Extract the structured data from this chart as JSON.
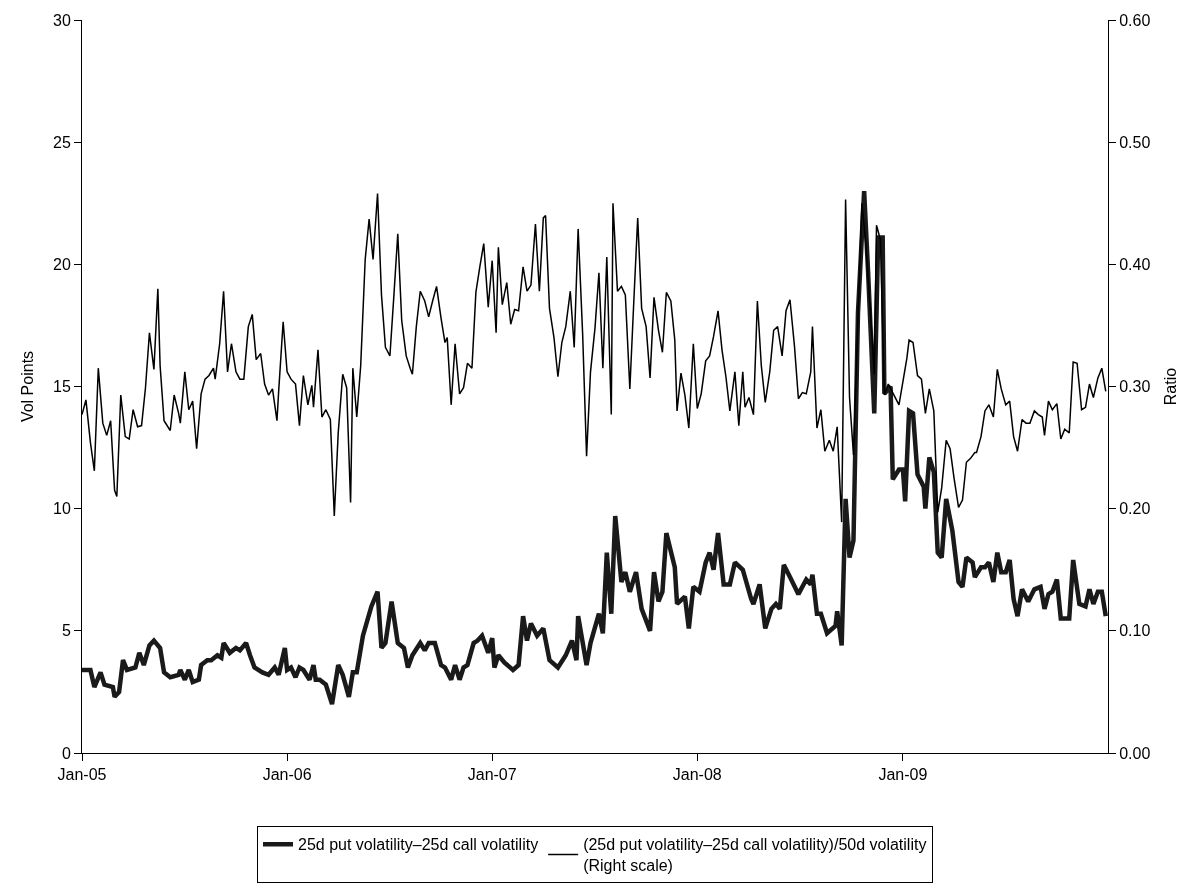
{
  "chart_data": {
    "type": "line",
    "ylabel": "Vol Points",
    "y2label": "Ratio",
    "legend": "bottom",
    "grid": false,
    "marker": "none",
    "line_style": "solid",
    "xlim": [
      "2005-01-01",
      "2010-01-01"
    ],
    "xticks": [
      {
        "value": "2005-01-01",
        "label": "Jan-05"
      },
      {
        "value": "2006-01-01",
        "label": "Jan-06"
      },
      {
        "value": "2007-01-01",
        "label": "Jan-07"
      },
      {
        "value": "2008-01-01",
        "label": "Jan-08"
      },
      {
        "value": "2009-01-01",
        "label": "Jan-09"
      }
    ],
    "ylim": [
      0,
      30
    ],
    "yticks": [
      0,
      5,
      10,
      15,
      20,
      25,
      30
    ],
    "y2lim": [
      0,
      0.6
    ],
    "y2ticks": [
      {
        "value": 0,
        "label": "0.00"
      },
      {
        "value": 0.1,
        "label": "0.10"
      },
      {
        "value": 0.2,
        "label": "0.20"
      },
      {
        "value": 0.3,
        "label": "0.30"
      },
      {
        "value": 0.4,
        "label": "0.40"
      },
      {
        "value": 0.5,
        "label": "0.50"
      },
      {
        "value": 0.6,
        "label": "0.60"
      }
    ],
    "series": [
      {
        "name": "25d put volatility–25d call volatility",
        "color": "#1a1a1a",
        "x": [
          "2005-01-01",
          "2005-01-16",
          "2005-01-23",
          "2005-02-03",
          "2005-02-10",
          "2005-02-25",
          "2005-02-28",
          "2005-03-08",
          "2005-03-15",
          "2005-03-22",
          "2005-04-06",
          "2005-04-13",
          "2005-04-21",
          "2005-05-01",
          "2005-05-09",
          "2005-05-20",
          "2005-05-27",
          "2005-06-07",
          "2005-06-22",
          "2005-06-25",
          "2005-07-03",
          "2005-07-10",
          "2005-07-17",
          "2005-07-28",
          "2005-08-01",
          "2005-08-12",
          "2005-08-19",
          "2005-08-30",
          "2005-09-06",
          "2005-09-10",
          "2005-09-21",
          "2005-10-02",
          "2005-10-09",
          "2005-10-20",
          "2005-10-27",
          "2005-11-04",
          "2005-11-18",
          "2005-11-29",
          "2005-12-10",
          "2005-12-17",
          "2005-12-28",
          "2006-01-01",
          "2006-01-08",
          "2006-01-16",
          "2006-01-23",
          "2006-01-30",
          "2006-02-10",
          "2006-02-17",
          "2006-02-21",
          "2006-02-28",
          "2006-03-11",
          "2006-03-22",
          "2006-04-02",
          "2006-04-10",
          "2006-04-21",
          "2006-04-28",
          "2006-05-05",
          "2006-05-16",
          "2006-05-31",
          "2006-06-11",
          "2006-06-18",
          "2006-06-25",
          "2006-07-06",
          "2006-07-17",
          "2006-07-28",
          "2006-08-04",
          "2006-08-12",
          "2006-08-26",
          "2006-09-03",
          "2006-09-10",
          "2006-09-21",
          "2006-10-02",
          "2006-10-09",
          "2006-10-20",
          "2006-10-27",
          "2006-11-04",
          "2006-11-11",
          "2006-11-18",
          "2006-11-29",
          "2006-12-06",
          "2006-12-14",
          "2006-12-25",
          "2007-01-01",
          "2007-01-05",
          "2007-01-12",
          "2007-01-23",
          "2007-02-07",
          "2007-02-17",
          "2007-02-25",
          "2007-03-04",
          "2007-03-11",
          "2007-03-22",
          "2007-04-02",
          "2007-04-13",
          "2007-04-28",
          "2007-05-12",
          "2007-05-23",
          "2007-05-31",
          "2007-06-03",
          "2007-06-18",
          "2007-06-25",
          "2007-07-10",
          "2007-07-17",
          "2007-07-24",
          "2007-08-01",
          "2007-08-08",
          "2007-08-19",
          "2007-08-26",
          "2007-09-03",
          "2007-09-14",
          "2007-09-24",
          "2007-10-09",
          "2007-10-16",
          "2007-10-24",
          "2007-10-31",
          "2007-11-07",
          "2007-11-22",
          "2007-11-26",
          "2007-12-10",
          "2007-12-17",
          "2007-12-25",
          "2008-01-05",
          "2008-01-16",
          "2008-01-23",
          "2008-01-30",
          "2008-02-07",
          "2008-02-17",
          "2008-02-28",
          "2008-03-08",
          "2008-03-22",
          "2008-04-06",
          "2008-04-10",
          "2008-04-21",
          "2008-05-01",
          "2008-05-12",
          "2008-05-20",
          "2008-05-27",
          "2008-06-03",
          "2008-06-14",
          "2008-06-29",
          "2008-07-13",
          "2008-07-21",
          "2008-07-24",
          "2008-08-01",
          "2008-08-08",
          "2008-08-19",
          "2008-09-03",
          "2008-09-06",
          "2008-09-14",
          "2008-09-21",
          "2008-09-28",
          "2008-10-05",
          "2008-10-13",
          "2008-10-24",
          "2008-10-31",
          "2008-11-11",
          "2008-11-18",
          "2008-11-26",
          "2008-11-29",
          "2008-12-10",
          "2008-12-14",
          "2008-12-25",
          "2009-01-01",
          "2009-01-05",
          "2009-01-12",
          "2009-01-19",
          "2009-01-27",
          "2009-02-07",
          "2009-02-10",
          "2009-02-17",
          "2009-02-25",
          "2009-03-04",
          "2009-03-11",
          "2009-03-19",
          "2009-03-30",
          "2009-04-10",
          "2009-04-17",
          "2009-04-24",
          "2009-05-05",
          "2009-05-09",
          "2009-05-20",
          "2009-05-27",
          "2009-06-03",
          "2009-06-11",
          "2009-06-18",
          "2009-06-25",
          "2009-07-03",
          "2009-07-10",
          "2009-07-17",
          "2009-07-24",
          "2009-08-01",
          "2009-08-12",
          "2009-08-23",
          "2009-09-03",
          "2009-09-10",
          "2009-09-17",
          "2009-09-24",
          "2009-10-02",
          "2009-10-09",
          "2009-10-24",
          "2009-10-31",
          "2009-11-11",
          "2009-11-22",
          "2009-11-29",
          "2009-12-06",
          "2009-12-14",
          "2009-12-21",
          "2009-12-28"
        ],
        "values": [
          3.4,
          3.4,
          2.7,
          3.3,
          2.8,
          2.7,
          2.3,
          2.5,
          3.8,
          3.4,
          3.5,
          4.1,
          3.6,
          4.4,
          4.6,
          4.3,
          3.3,
          3.1,
          3.2,
          3.4,
          3.0,
          3.4,
          2.9,
          3.0,
          3.6,
          3.8,
          3.8,
          4.0,
          3.9,
          4.5,
          4.1,
          4.3,
          4.2,
          4.5,
          4.0,
          3.5,
          3.3,
          3.2,
          3.5,
          3.2,
          4.3,
          3.4,
          3.5,
          3.1,
          3.5,
          3.4,
          3.0,
          3.6,
          3.0,
          3.0,
          2.8,
          2.0,
          3.6,
          3.2,
          2.3,
          3.3,
          3.3,
          4.8,
          6.0,
          6.6,
          4.3,
          4.5,
          6.2,
          4.5,
          4.3,
          3.5,
          4.0,
          4.5,
          4.2,
          4.5,
          4.5,
          3.6,
          3.5,
          3.0,
          3.6,
          3.0,
          3.5,
          3.6,
          4.5,
          4.6,
          4.8,
          4.1,
          4.7,
          3.5,
          4.0,
          3.7,
          3.4,
          3.6,
          5.6,
          4.6,
          5.3,
          4.8,
          5.1,
          3.8,
          3.5,
          4.0,
          4.6,
          3.8,
          5.6,
          3.6,
          4.5,
          5.7,
          4.9,
          8.2,
          5.7,
          9.7,
          7.0,
          7.4,
          6.6,
          7.4,
          5.9,
          5.0,
          7.4,
          6.2,
          6.6,
          9.0,
          7.6,
          6.1,
          6.4,
          5.1,
          6.8,
          6.6,
          7.8,
          8.2,
          7.5,
          9.0,
          6.9,
          6.9,
          7.8,
          7.5,
          6.3,
          6.1,
          6.9,
          5.1,
          5.9,
          6.1,
          5.9,
          7.7,
          7.2,
          6.5,
          7.1,
          6.9,
          7.3,
          5.7,
          5.7,
          4.9,
          5.2,
          5.8,
          4.4,
          10.4,
          8.0,
          8.7,
          18.0,
          23.0,
          19.7,
          13.9,
          21.1,
          21.1,
          14.7,
          15.0,
          11.2,
          11.6,
          11.6,
          10.3,
          14.0,
          13.9,
          11.4,
          10.9,
          10.0,
          12.1,
          11.5,
          8.2,
          8.0,
          10.4,
          9.1,
          7.0,
          6.8,
          8.0,
          7.8,
          7.2,
          7.6,
          7.6,
          7.8,
          7.0,
          8.2,
          7.4,
          7.4,
          7.9,
          6.3,
          5.6,
          6.7,
          6.2,
          6.7,
          6.8,
          5.9,
          6.5,
          6.6,
          7.1,
          5.5,
          5.5,
          7.9,
          6.1,
          6.0,
          6.7,
          6.1,
          6.6,
          6.6,
          5.6
        ]
      },
      {
        "name": "(25d put volatility–25d call volatility)/50d volatility\n(Right scale)",
        "color": "#000000",
        "axis": "y2",
        "x": [
          "2005-01-01",
          "2005-01-08",
          "2005-01-16",
          "2005-01-23",
          "2005-01-30",
          "2005-02-07",
          "2005-02-14",
          "2005-02-21",
          "2005-02-28",
          "2005-03-04",
          "2005-03-11",
          "2005-03-19",
          "2005-03-26",
          "2005-04-02",
          "2005-04-10",
          "2005-04-17",
          "2005-04-24",
          "2005-05-01",
          "2005-05-09",
          "2005-05-16",
          "2005-05-20",
          "2005-05-27",
          "2005-06-07",
          "2005-06-14",
          "2005-06-22",
          "2005-06-25",
          "2005-07-03",
          "2005-07-10",
          "2005-07-17",
          "2005-07-24",
          "2005-08-01",
          "2005-08-08",
          "2005-08-15",
          "2005-08-23",
          "2005-08-26",
          "2005-09-03",
          "2005-09-10",
          "2005-09-17",
          "2005-09-24",
          "2005-10-02",
          "2005-10-09",
          "2005-10-16",
          "2005-10-24",
          "2005-10-31",
          "2005-11-07",
          "2005-11-15",
          "2005-11-22",
          "2005-11-29",
          "2005-12-06",
          "2005-12-14",
          "2005-12-17",
          "2005-12-25",
          "2006-01-01",
          "2006-01-08",
          "2006-01-16",
          "2006-01-23",
          "2006-01-30",
          "2006-02-07",
          "2006-02-14",
          "2006-02-17",
          "2006-02-25",
          "2006-03-04",
          "2006-03-11",
          "2006-03-19",
          "2006-03-26",
          "2006-04-02",
          "2006-04-10",
          "2006-04-17",
          "2006-04-24",
          "2006-04-28",
          "2006-05-05",
          "2006-05-12",
          "2006-05-20",
          "2006-05-27",
          "2006-06-03",
          "2006-06-11",
          "2006-06-18",
          "2006-06-25",
          "2006-07-03",
          "2006-07-10",
          "2006-07-17",
          "2006-07-24",
          "2006-08-01",
          "2006-08-08",
          "2006-08-12",
          "2006-08-19",
          "2006-08-26",
          "2006-09-03",
          "2006-09-10",
          "2006-09-17",
          "2006-09-24",
          "2006-10-02",
          "2006-10-09",
          "2006-10-13",
          "2006-10-20",
          "2006-10-27",
          "2006-11-04",
          "2006-11-11",
          "2006-11-18",
          "2006-11-26",
          "2006-12-03",
          "2006-12-10",
          "2006-12-17",
          "2006-12-25",
          "2007-01-01",
          "2007-01-08",
          "2007-01-12",
          "2007-01-19",
          "2007-01-27",
          "2007-02-03",
          "2007-02-10",
          "2007-02-17",
          "2007-02-25",
          "2007-03-04",
          "2007-03-11",
          "2007-03-19",
          "2007-03-26",
          "2007-04-02",
          "2007-04-06",
          "2007-04-13",
          "2007-04-21",
          "2007-04-28",
          "2007-05-05",
          "2007-05-12",
          "2007-05-20",
          "2007-05-27",
          "2007-06-03",
          "2007-06-11",
          "2007-06-18",
          "2007-06-25",
          "2007-07-03",
          "2007-07-10",
          "2007-07-17",
          "2007-07-24",
          "2007-08-01",
          "2007-08-04",
          "2007-08-12",
          "2007-08-19",
          "2007-08-26",
          "2007-09-03",
          "2007-09-10",
          "2007-09-17",
          "2007-09-24",
          "2007-10-02",
          "2007-10-09",
          "2007-10-16",
          "2007-10-24",
          "2007-10-31",
          "2007-11-07",
          "2007-11-15",
          "2007-11-22",
          "2007-11-26",
          "2007-12-03",
          "2007-12-10",
          "2007-12-17",
          "2007-12-25",
          "2008-01-01",
          "2008-01-08",
          "2008-01-16",
          "2008-01-23",
          "2008-01-30",
          "2008-02-07",
          "2008-02-14",
          "2008-02-21",
          "2008-02-28",
          "2008-03-08",
          "2008-03-15",
          "2008-03-22",
          "2008-03-26",
          "2008-04-02",
          "2008-04-10",
          "2008-04-17",
          "2008-04-24",
          "2008-05-01",
          "2008-05-09",
          "2008-05-16",
          "2008-05-23",
          "2008-05-31",
          "2008-06-07",
          "2008-06-14",
          "2008-06-22",
          "2008-06-29",
          "2008-07-06",
          "2008-07-13",
          "2008-07-21",
          "2008-07-24",
          "2008-08-01",
          "2008-08-08",
          "2008-08-15",
          "2008-08-23",
          "2008-08-30",
          "2008-09-06",
          "2008-09-14",
          "2008-09-21",
          "2008-09-28",
          "2008-10-05",
          "2008-10-13",
          "2008-10-20",
          "2008-10-27",
          "2008-11-04",
          "2008-11-11",
          "2008-11-15",
          "2008-11-22",
          "2008-11-29",
          "2008-12-06",
          "2008-12-25",
          "2009-01-08",
          "2009-01-12",
          "2009-01-19",
          "2009-01-27",
          "2009-02-03",
          "2009-02-10",
          "2009-02-17",
          "2009-02-25",
          "2009-03-04",
          "2009-03-11",
          "2009-03-19",
          "2009-03-26",
          "2009-04-02",
          "2009-04-10",
          "2009-04-17",
          "2009-04-24",
          "2009-05-01",
          "2009-05-09",
          "2009-05-12",
          "2009-05-20",
          "2009-05-27",
          "2009-06-03",
          "2009-06-11",
          "2009-06-18",
          "2009-06-25",
          "2009-07-03",
          "2009-07-10",
          "2009-07-17",
          "2009-07-24",
          "2009-08-01",
          "2009-08-08",
          "2009-08-15",
          "2009-08-23",
          "2009-08-30",
          "2009-09-06",
          "2009-09-10",
          "2009-09-17",
          "2009-09-24",
          "2009-10-02",
          "2009-10-09",
          "2009-10-16",
          "2009-10-24",
          "2009-10-31",
          "2009-11-07",
          "2009-11-15",
          "2009-11-22",
          "2009-11-29",
          "2009-12-06",
          "2009-12-14",
          "2009-12-21",
          "2009-12-28"
        ],
        "values": [
          0.277,
          0.289,
          0.254,
          0.231,
          0.315,
          0.27,
          0.26,
          0.272,
          0.215,
          0.21,
          0.293,
          0.259,
          0.257,
          0.281,
          0.267,
          0.268,
          0.299,
          0.344,
          0.314,
          0.38,
          0.317,
          0.272,
          0.264,
          0.293,
          0.278,
          0.27,
          0.312,
          0.281,
          0.288,
          0.249,
          0.294,
          0.306,
          0.309,
          0.315,
          0.306,
          0.335,
          0.378,
          0.312,
          0.335,
          0.312,
          0.306,
          0.306,
          0.349,
          0.359,
          0.322,
          0.327,
          0.302,
          0.293,
          0.298,
          0.272,
          0.296,
          0.353,
          0.312,
          0.306,
          0.302,
          0.268,
          0.309,
          0.285,
          0.301,
          0.283,
          0.33,
          0.275,
          0.281,
          0.273,
          0.194,
          0.262,
          0.31,
          0.299,
          0.205,
          0.315,
          0.275,
          0.317,
          0.404,
          0.437,
          0.404,
          0.458,
          0.375,
          0.332,
          0.325,
          0.374,
          0.425,
          0.354,
          0.325,
          0.315,
          0.31,
          0.349,
          0.378,
          0.37,
          0.357,
          0.37,
          0.382,
          0.356,
          0.336,
          0.34,
          0.285,
          0.335,
          0.294,
          0.299,
          0.319,
          0.315,
          0.377,
          0.398,
          0.417,
          0.365,
          0.403,
          0.344,
          0.414,
          0.367,
          0.385,
          0.351,
          0.363,
          0.362,
          0.398,
          0.378,
          0.383,
          0.433,
          0.378,
          0.438,
          0.44,
          0.364,
          0.34,
          0.308,
          0.336,
          0.349,
          0.378,
          0.332,
          0.429,
          0.343,
          0.243,
          0.312,
          0.348,
          0.393,
          0.315,
          0.406,
          0.277,
          0.45,
          0.378,
          0.382,
          0.375,
          0.298,
          0.369,
          0.438,
          0.364,
          0.349,
          0.307,
          0.373,
          0.346,
          0.328,
          0.377,
          0.37,
          0.338,
          0.28,
          0.311,
          0.293,
          0.266,
          0.335,
          0.282,
          0.294,
          0.321,
          0.325,
          0.341,
          0.362,
          0.33,
          0.308,
          0.28,
          0.312,
          0.268,
          0.312,
          0.283,
          0.291,
          0.277,
          0.37,
          0.317,
          0.287,
          0.312,
          0.346,
          0.349,
          0.325,
          0.362,
          0.371,
          0.333,
          0.29,
          0.295,
          0.294,
          0.312,
          0.349,
          0.266,
          0.281,
          0.247,
          0.256,
          0.247,
          0.267,
          0.189,
          0.453,
          0.291,
          0.244,
          0.356,
          0.45,
          0.417,
          0.362,
          0.31,
          0.432,
          0.42,
          0.293,
          0.302,
          0.285,
          0.323,
          0.338,
          0.336,
          0.309,
          0.306,
          0.278,
          0.298,
          0.28,
          0.197,
          0.217,
          0.256,
          0.249,
          0.225,
          0.201,
          0.207,
          0.238,
          0.241,
          0.246,
          0.246,
          0.259,
          0.28,
          0.285,
          0.275,
          0.314,
          0.298,
          0.285,
          0.288,
          0.259,
          0.247,
          0.273,
          0.27,
          0.27,
          0.28,
          0.277,
          0.275,
          0.26,
          0.288,
          0.281,
          0.286,
          0.257,
          0.265,
          0.262,
          0.32,
          0.319,
          0.281,
          0.283,
          0.302,
          0.291,
          0.307,
          0.315,
          0.296
        ]
      }
    ]
  }
}
